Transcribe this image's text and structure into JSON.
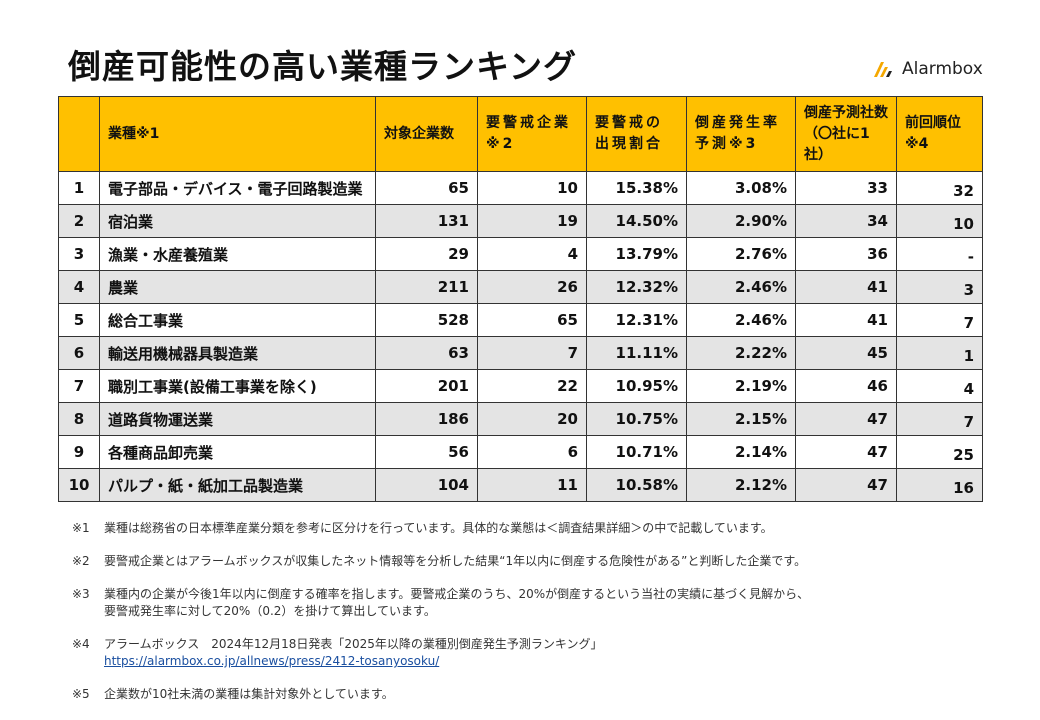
{
  "title": "倒産可能性の高い業種ランキング",
  "brand": {
    "name": "Alarmbox",
    "icon": "alarmbox-logo-icon",
    "color": "#f5a800"
  },
  "colors": {
    "header_bg": "#ffc000",
    "stripe_bg": "#e4e4e4"
  },
  "table": {
    "headers": {
      "no": "",
      "industry": "業種※1",
      "target": "対象企業数",
      "warning": "要警戒企業※2",
      "ratio": "要警戒の出現割合",
      "rate": "倒産発生率予測※3",
      "predicted": "倒産予測社数（〇社に1社）",
      "previous": "前回順位※4"
    },
    "rows": [
      {
        "no": "1",
        "industry": "電子部品・デバイス・電子回路製造業",
        "target": "65",
        "warning": "10",
        "ratio": "15.38%",
        "rate": "3.08%",
        "predicted": "33",
        "previous": "32"
      },
      {
        "no": "2",
        "industry": "宿泊業",
        "target": "131",
        "warning": "19",
        "ratio": "14.50%",
        "rate": "2.90%",
        "predicted": "34",
        "previous": "10"
      },
      {
        "no": "3",
        "industry": "漁業・水産養殖業",
        "target": "29",
        "warning": "4",
        "ratio": "13.79%",
        "rate": "2.76%",
        "predicted": "36",
        "previous": "-"
      },
      {
        "no": "4",
        "industry": "農業",
        "target": "211",
        "warning": "26",
        "ratio": "12.32%",
        "rate": "2.46%",
        "predicted": "41",
        "previous": "3"
      },
      {
        "no": "5",
        "industry": "総合工事業",
        "target": "528",
        "warning": "65",
        "ratio": "12.31%",
        "rate": "2.46%",
        "predicted": "41",
        "previous": "7"
      },
      {
        "no": "6",
        "industry": "輸送用機械器具製造業",
        "target": "63",
        "warning": "7",
        "ratio": "11.11%",
        "rate": "2.22%",
        "predicted": "45",
        "previous": "1"
      },
      {
        "no": "7",
        "industry": "職別工事業(設備工事業を除く)",
        "target": "201",
        "warning": "22",
        "ratio": "10.95%",
        "rate": "2.19%",
        "predicted": "46",
        "previous": "4"
      },
      {
        "no": "8",
        "industry": "道路貨物運送業",
        "target": "186",
        "warning": "20",
        "ratio": "10.75%",
        "rate": "2.15%",
        "predicted": "47",
        "previous": "7"
      },
      {
        "no": "9",
        "industry": "各種商品卸売業",
        "target": "56",
        "warning": "6",
        "ratio": "10.71%",
        "rate": "2.14%",
        "predicted": "47",
        "previous": "25"
      },
      {
        "no": "10",
        "industry": "パルプ・紙・紙加工品製造業",
        "target": "104",
        "warning": "11",
        "ratio": "10.58%",
        "rate": "2.12%",
        "predicted": "47",
        "previous": "16"
      }
    ]
  },
  "notes": [
    {
      "mark": "※1",
      "lines": [
        "業種は総務省の日本標準産業分類を参考に区分けを行っています。具体的な業態は＜調査結果詳細＞の中で記載しています。"
      ]
    },
    {
      "mark": "※2",
      "lines": [
        "要警戒企業とはアラームボックスが収集したネット情報等を分析した結果“1年以内に倒産する危険性がある”と判断した企業です。"
      ]
    },
    {
      "mark": "※3",
      "lines": [
        "業種内の企業が今後1年以内に倒産する確率を指します。要警戒企業のうち、20%が倒産するという当社の実績に基づく見解から、",
        "要警戒発生率に対して20%（0.2）を掛けて算出しています。"
      ]
    },
    {
      "mark": "※4",
      "lines": [
        "アラームボックス　2024年12月18日発表「2025年以降の業種別倒産発生予測ランキング」"
      ],
      "link": "https://alarmbox.co.jp/allnews/press/2412-tosanyosoku/"
    },
    {
      "mark": "※5",
      "lines": [
        "企業数が10社未満の業種は集計対象外としています。"
      ]
    }
  ]
}
